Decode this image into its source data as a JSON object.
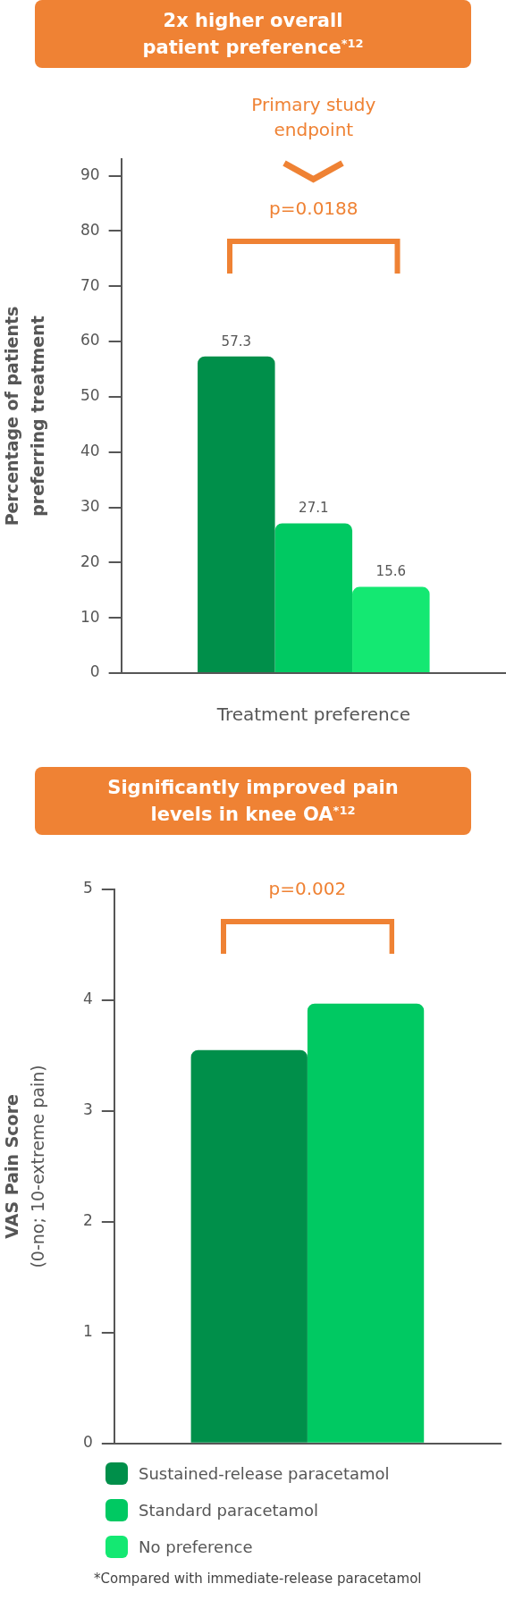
{
  "chart_data": [
    {
      "type": "bar",
      "title": "2x higher overall patient preference$^{*12}$",
      "xlabel": "Treatment preference",
      "ylabel": "Percentage of patients preferring treatment",
      "categories": [
        null
      ],
      "series": [
        {
          "name": "Sustained-release paracetamol",
          "color": "#008f4a",
          "values": [
            57.3
          ]
        },
        {
          "name": "Standard paracetamol",
          "color": "#00c962",
          "values": [
            27.1
          ]
        },
        {
          "name": "No preference",
          "color": "#14e872",
          "values": [
            15.6
          ]
        }
      ],
      "ylim": [
        0,
        93
      ],
      "yticks": [
        0,
        10,
        20,
        30,
        40,
        50,
        60,
        70,
        80,
        90
      ],
      "data_labels": true,
      "legend": "bottom",
      "annotations": [
        "Primary study endpoint",
        "p=0.0188"
      ]
    },
    {
      "type": "bar",
      "title": "Significantly improved pain levels in knee OA$^{*12}$",
      "ylabel": "VAS Pain Score (0-no; 10-extreme pain)",
      "categories": [
        null
      ],
      "series": [
        {
          "name": "Sustained-release paracetamol",
          "color": "#008f4a",
          "values": [
            3.55
          ]
        },
        {
          "name": "Standard paracetamol",
          "color": "#00c962",
          "values": [
            3.97
          ]
        }
      ],
      "ylim": [
        0,
        5
      ],
      "yticks": [
        0,
        1,
        2,
        3,
        4,
        5
      ],
      "legend": "bottom",
      "annotations": [
        "p=0.002",
        "*Compared with immediate-release paracetamol"
      ]
    }
  ]
}
